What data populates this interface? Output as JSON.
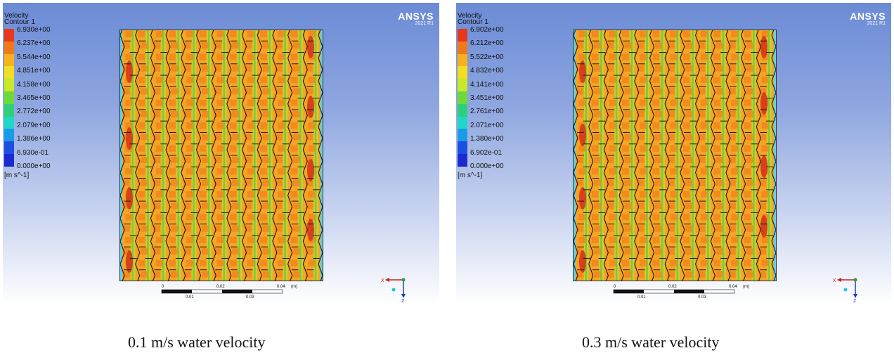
{
  "panels": [
    {
      "legend_title_1": "Velocity",
      "legend_title_2": "Contour 1",
      "legend_values": [
        "6.930e+00",
        "6.237e+00",
        "5.544e+00",
        "4.851e+00",
        "4.158e+00",
        "3.465e+00",
        "2.772e+00",
        "2.079e+00",
        "1.386e+00",
        "6.930e-01",
        "0.000e+00"
      ],
      "unit": "[m s^-1]",
      "brand": "ANSYS",
      "version": "2021 R1",
      "scale_top": [
        "0",
        "0.02",
        "0.04",
        "(m)"
      ],
      "scale_bottom": [
        "0.01",
        "0.03"
      ],
      "axis_x": "X",
      "axis_z": "Z",
      "caption": "0.1 m/s water velocity"
    },
    {
      "legend_title_1": "Velocity",
      "legend_title_2": "Contour 1",
      "legend_values": [
        "6.902e+00",
        "6.212e+00",
        "5.522e+00",
        "4.832e+00",
        "4.141e+00",
        "3.451e+00",
        "2.761e+00",
        "2.071e+00",
        "1.380e+00",
        "6.902e-01",
        "0.000e+00"
      ],
      "unit": "[m s^-1]",
      "brand": "ANSYS",
      "version": "2021 R1",
      "scale_top": [
        "0",
        "0.02",
        "0.04",
        "(m)"
      ],
      "scale_bottom": [
        "0.01",
        "0.03"
      ],
      "axis_x": "X",
      "axis_z": "Z",
      "caption": "0.3 m/s water velocity"
    }
  ],
  "colormap": [
    "#e8371c",
    "#f07a1a",
    "#f5b21c",
    "#f2dd1f",
    "#c8e82a",
    "#6fd93a",
    "#2fd07a",
    "#1ed7c8",
    "#1a9be8",
    "#1d4fe0",
    "#1a2ad0"
  ]
}
